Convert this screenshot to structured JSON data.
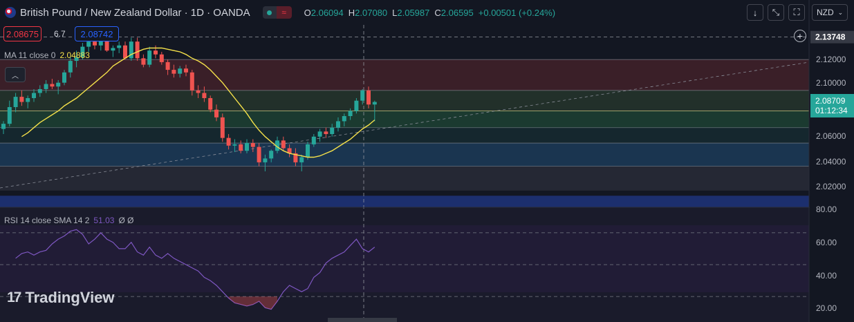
{
  "header": {
    "title": "British Pound / New Zealand Dollar · 1D · OANDA",
    "ohlc": [
      {
        "k": "O",
        "v": "2.06094"
      },
      {
        "k": "H",
        "v": "2.07080"
      },
      {
        "k": "L",
        "v": "2.05987"
      },
      {
        "k": "C",
        "v": "2.06595"
      },
      {
        "k": "",
        "v": "+0.00501 (+0.24%)"
      }
    ],
    "currency": "NZD"
  },
  "trade": {
    "sell": "2.08675",
    "spread": "6.7",
    "buy": "2.08742"
  },
  "indicator_ma": {
    "label": "MA 11 close 0",
    "value": "2.04883"
  },
  "indicator_rsi": {
    "label": "RSI 14 close SMA 14 2",
    "value": "51.03",
    "extra": "Ø Ø"
  },
  "brand": {
    "name": "TradingView"
  },
  "price_scale": {
    "ticks": [
      "2.12000",
      "2.10000",
      "2.06000",
      "2.04000",
      "2.02000",
      "80.00",
      "60.00",
      "40.00",
      "20.00"
    ],
    "crosshair_price": "2.13748",
    "last_price": "2.08709",
    "countdown": "01:12:34"
  },
  "colors": {
    "up": "#26a69a",
    "down": "#ef5350",
    "ma": "#f5e14a",
    "rsi": "#7e57c2",
    "accent": "#2962ff"
  },
  "chart_data": {
    "type": "candlestick",
    "symbol": "British Pound / New Zealand Dollar",
    "interval": "1D",
    "ylim": [
      2.005,
      2.147
    ],
    "candles": [
      [
        2.066,
        2.072,
        2.062,
        2.07
      ],
      [
        2.07,
        2.088,
        2.068,
        2.083
      ],
      [
        2.083,
        2.094,
        2.079,
        2.091
      ],
      [
        2.091,
        2.096,
        2.084,
        2.087
      ],
      [
        2.087,
        2.092,
        2.082,
        2.09
      ],
      [
        2.09,
        2.097,
        2.087,
        2.094
      ],
      [
        2.094,
        2.1,
        2.091,
        2.097
      ],
      [
        2.097,
        2.104,
        2.094,
        2.101
      ],
      [
        2.101,
        2.105,
        2.097,
        2.099
      ],
      [
        2.099,
        2.104,
        2.093,
        2.102
      ],
      [
        2.102,
        2.112,
        2.1,
        2.11
      ],
      [
        2.11,
        2.122,
        2.106,
        2.119
      ],
      [
        2.119,
        2.127,
        2.114,
        2.122
      ],
      [
        2.122,
        2.133,
        2.12,
        2.13
      ],
      [
        2.13,
        2.137,
        2.126,
        2.134
      ],
      [
        2.134,
        2.138,
        2.128,
        2.131
      ],
      [
        2.131,
        2.137,
        2.127,
        2.135
      ],
      [
        2.135,
        2.138,
        2.126,
        2.127
      ],
      [
        2.127,
        2.131,
        2.122,
        2.129
      ],
      [
        2.129,
        2.134,
        2.125,
        2.131
      ],
      [
        2.131,
        2.134,
        2.12,
        2.121
      ],
      [
        2.121,
        2.137,
        2.119,
        2.134
      ],
      [
        2.134,
        2.137,
        2.119,
        2.121
      ],
      [
        2.121,
        2.124,
        2.114,
        2.116
      ],
      [
        2.116,
        2.13,
        2.114,
        2.127
      ],
      [
        2.127,
        2.131,
        2.121,
        2.124
      ],
      [
        2.124,
        2.126,
        2.116,
        2.118
      ],
      [
        2.118,
        2.12,
        2.108,
        2.112
      ],
      [
        2.112,
        2.116,
        2.106,
        2.109
      ],
      [
        2.109,
        2.115,
        2.106,
        2.113
      ],
      [
        2.113,
        2.116,
        2.107,
        2.11
      ],
      [
        2.11,
        2.112,
        2.092,
        2.096
      ],
      [
        2.096,
        2.1,
        2.09,
        2.094
      ],
      [
        2.094,
        2.099,
        2.087,
        2.09
      ],
      [
        2.09,
        2.092,
        2.079,
        2.081
      ],
      [
        2.081,
        2.085,
        2.072,
        2.075
      ],
      [
        2.075,
        2.078,
        2.056,
        2.059
      ],
      [
        2.059,
        2.062,
        2.05,
        2.053
      ],
      [
        2.053,
        2.058,
        2.048,
        2.054
      ],
      [
        2.054,
        2.057,
        2.047,
        2.049
      ],
      [
        2.049,
        2.058,
        2.047,
        2.055
      ],
      [
        2.055,
        2.058,
        2.048,
        2.052
      ],
      [
        2.052,
        2.055,
        2.037,
        2.04
      ],
      [
        2.04,
        2.046,
        2.033,
        2.043
      ],
      [
        2.043,
        2.05,
        2.04,
        2.049
      ],
      [
        2.049,
        2.06,
        2.047,
        2.057
      ],
      [
        2.057,
        2.06,
        2.049,
        2.051
      ],
      [
        2.051,
        2.054,
        2.044,
        2.047
      ],
      [
        2.047,
        2.051,
        2.037,
        2.04
      ],
      [
        2.04,
        2.046,
        2.033,
        2.044
      ],
      [
        2.044,
        2.056,
        2.042,
        2.054
      ],
      [
        2.054,
        2.062,
        2.052,
        2.06
      ],
      [
        2.06,
        2.066,
        2.056,
        2.064
      ],
      [
        2.064,
        2.067,
        2.059,
        2.062
      ],
      [
        2.062,
        2.07,
        2.06,
        2.067
      ],
      [
        2.067,
        2.075,
        2.064,
        2.072
      ],
      [
        2.072,
        2.078,
        2.068,
        2.076
      ],
      [
        2.076,
        2.082,
        2.073,
        2.08
      ],
      [
        2.08,
        2.09,
        2.078,
        2.088
      ],
      [
        2.088,
        2.097,
        2.085,
        2.096
      ],
      [
        2.096,
        2.099,
        2.082,
        2.085
      ],
      [
        2.085,
        2.088,
        2.072,
        2.087
      ]
    ],
    "ma_period": 11,
    "ma": [
      2.06,
      2.063,
      2.067,
      2.071,
      2.074,
      2.077,
      2.08,
      2.084,
      2.087,
      2.09,
      2.094,
      2.098,
      2.102,
      2.106,
      2.11,
      2.115,
      2.118,
      2.121,
      2.124,
      2.126,
      2.128,
      2.129,
      2.129,
      2.129,
      2.128,
      2.127,
      2.126,
      2.124,
      2.121,
      2.119,
      2.116,
      2.112,
      2.107,
      2.102,
      2.096,
      2.09,
      2.084,
      2.078,
      2.071,
      2.065,
      2.06,
      2.056,
      2.052,
      2.049,
      2.047,
      2.046,
      2.045,
      2.044,
      2.044,
      2.045,
      2.047,
      2.049,
      2.052,
      2.055,
      2.058,
      2.062,
      2.066,
      2.069,
      2.073
    ],
    "rsi": [
      54,
      57,
      58,
      56,
      58,
      59,
      63,
      66,
      68,
      71,
      72,
      69,
      63,
      66,
      70,
      66,
      64,
      60,
      60,
      64,
      58,
      56,
      61,
      56,
      54,
      57,
      54,
      52,
      50,
      48,
      46,
      42,
      40,
      37,
      33,
      29,
      26,
      25,
      24,
      25,
      27,
      23,
      22,
      27,
      33,
      37,
      35,
      33,
      35,
      42,
      45,
      51,
      54,
      56,
      58,
      62,
      66,
      60,
      58,
      61
    ],
    "rsi_ylim": [
      14,
      86
    ],
    "rsi_levels": [
      70,
      50,
      30
    ]
  }
}
